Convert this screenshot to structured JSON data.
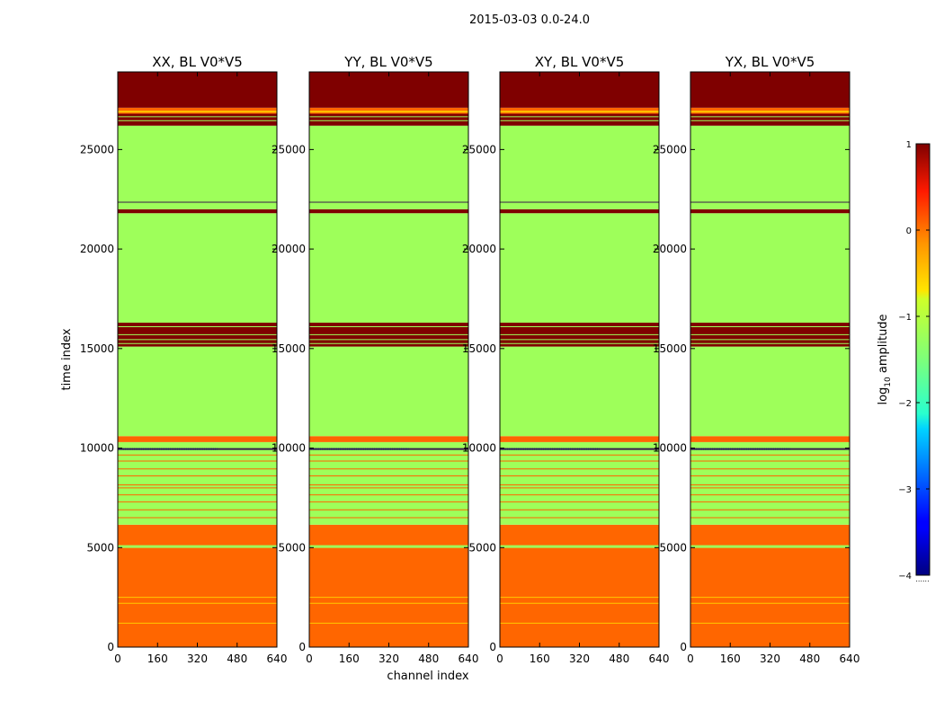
{
  "suptitle": "2015-03-03 0.0-24.0",
  "shared": {
    "xlabel": "channel index",
    "ylabel": "time index",
    "xlim": [
      0,
      640
    ],
    "ylim": [
      0,
      28900
    ],
    "x_ticks": [
      0,
      160,
      320,
      480,
      640
    ],
    "y_ticks": [
      0,
      5000,
      10000,
      15000,
      20000,
      25000
    ]
  },
  "colorbar": {
    "label": "log",
    "label_sub": "10",
    "label_tail": " amplitude",
    "range": [
      -4,
      1
    ],
    "ticks": [
      "1",
      "0",
      "−1",
      "−2",
      "−3",
      "−4"
    ],
    "tick_values": [
      1,
      0,
      -1,
      -2,
      -3,
      -4
    ],
    "colormap": "jet",
    "under_marker": "......"
  },
  "colors": {
    "high": "#7f0000",
    "mid": "#9eff5a",
    "low": "#ff6600",
    "gold": "#ffc800",
    "dark_line": "#3a1a4a"
  },
  "chart_data": [
    {
      "type": "heatmap",
      "title": "XX, BL V0*V5",
      "x_ticks": [
        "0",
        "160",
        "320",
        "480",
        "640"
      ],
      "y_ticks": [
        "0",
        "5000",
        "10000",
        "15000",
        "20000",
        "25000"
      ]
    },
    {
      "type": "heatmap",
      "title": "YY, BL V0*V5",
      "x_ticks": [
        "0",
        "160",
        "320",
        "480",
        "640"
      ],
      "y_ticks": [
        "0",
        "5000",
        "10000",
        "15000",
        "20000",
        "25000"
      ]
    },
    {
      "type": "heatmap",
      "title": "XY, BL V0*V5",
      "x_ticks": [
        "0",
        "160",
        "320",
        "480",
        "640"
      ],
      "y_ticks": [
        "0",
        "5000",
        "10000",
        "15000",
        "20000",
        "25000"
      ]
    },
    {
      "type": "heatmap",
      "title": "YX, BL V0*V5",
      "x_ticks": [
        "0",
        "160",
        "320",
        "480",
        "640"
      ],
      "y_ticks": [
        "0",
        "5000",
        "10000",
        "15000",
        "20000",
        "25000"
      ]
    }
  ],
  "bands": [
    {
      "from": 0,
      "to": 6150,
      "value": 0.3,
      "color": "low"
    },
    {
      "from": 6150,
      "to": 10300,
      "value": -0.9,
      "color": "mid"
    },
    {
      "from": 10300,
      "to": 10600,
      "value": 0.3,
      "color": "low"
    },
    {
      "from": 10600,
      "to": 15100,
      "value": -0.9,
      "color": "mid"
    },
    {
      "from": 15100,
      "to": 16300,
      "value": 1,
      "color": "high"
    },
    {
      "from": 16300,
      "to": 21800,
      "value": -0.9,
      "color": "mid"
    },
    {
      "from": 21800,
      "to": 22000,
      "value": 1,
      "color": "high"
    },
    {
      "from": 22000,
      "to": 26200,
      "value": -0.9,
      "color": "mid"
    },
    {
      "from": 26200,
      "to": 26800,
      "value": 1,
      "color": "high"
    },
    {
      "from": 26800,
      "to": 27100,
      "value": 0.3,
      "color": "low"
    },
    {
      "from": 27100,
      "to": 28900,
      "value": 1,
      "color": "high"
    }
  ],
  "lines": [
    {
      "y": 1200,
      "color": "gold"
    },
    {
      "y": 2200,
      "color": "gold"
    },
    {
      "y": 2500,
      "color": "gold"
    },
    {
      "y": 5050,
      "color": "mid",
      "w": 3
    },
    {
      "y": 6500,
      "color": "low"
    },
    {
      "y": 6900,
      "color": "low"
    },
    {
      "y": 7300,
      "color": "low"
    },
    {
      "y": 7650,
      "color": "low"
    },
    {
      "y": 8000,
      "color": "low"
    },
    {
      "y": 8150,
      "color": "low"
    },
    {
      "y": 8600,
      "color": "low"
    },
    {
      "y": 8950,
      "color": "low"
    },
    {
      "y": 9350,
      "color": "low"
    },
    {
      "y": 9650,
      "color": "low"
    },
    {
      "y": 9950,
      "color": "dark_line",
      "w": 2
    },
    {
      "y": 15250,
      "color": "mid"
    },
    {
      "y": 15450,
      "color": "mid"
    },
    {
      "y": 15700,
      "color": "mid"
    },
    {
      "y": 16100,
      "color": "mid"
    },
    {
      "y": 22350,
      "color": "dark_line"
    },
    {
      "y": 26450,
      "color": "mid"
    },
    {
      "y": 26650,
      "color": "mid"
    },
    {
      "y": 26900,
      "color": "gold",
      "w": 2
    }
  ]
}
